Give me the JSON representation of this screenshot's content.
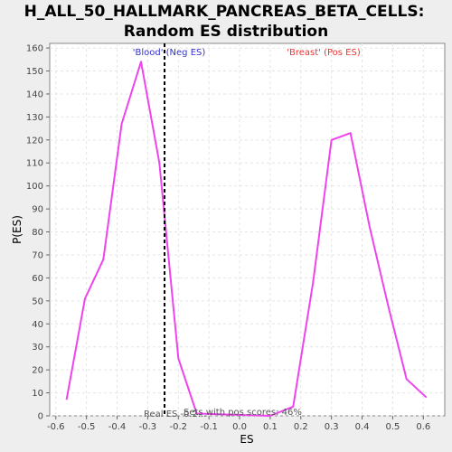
{
  "chart_data": {
    "type": "line",
    "title_lines": [
      "H_ALL_50_HALLMARK_PANCREAS_BETA_CELLS:",
      "Random ES distribution"
    ],
    "xlabel": "ES",
    "ylabel": "P(ES)",
    "xlim": [
      -0.62,
      0.67
    ],
    "ylim": [
      0,
      162
    ],
    "x_ticks": [
      -0.6,
      -0.5,
      -0.4,
      -0.3,
      -0.2,
      -0.1,
      0.0,
      0.1,
      0.2,
      0.3,
      0.4,
      0.5,
      0.6
    ],
    "x_tick_labels": [
      "-0.6",
      "-0.5",
      "-0.4",
      "-0.3",
      "-0.2",
      "-0.1",
      "0.0",
      "0.1",
      "0.2",
      "0.3",
      "0.4",
      "0.5",
      "0.6"
    ],
    "y_ticks": [
      0,
      10,
      20,
      30,
      40,
      50,
      60,
      70,
      80,
      90,
      100,
      110,
      120,
      130,
      140,
      150,
      160
    ],
    "y_tick_labels": [
      "0",
      "10",
      "20",
      "30",
      "40",
      "50",
      "60",
      "70",
      "80",
      "90",
      "100",
      "110",
      "120",
      "130",
      "140",
      "150",
      "160"
    ],
    "grid": true,
    "series": [
      {
        "color": "#ee44ee",
        "x": [
          -0.565,
          -0.505,
          -0.445,
          -0.385,
          -0.322,
          -0.262,
          -0.2,
          -0.14,
          0.1,
          0.175,
          0.24,
          0.3,
          0.362,
          0.425,
          0.485,
          0.545,
          0.61
        ],
        "y": [
          7,
          51,
          68,
          127,
          154,
          110,
          25,
          1,
          0,
          4,
          58,
          120,
          123,
          82,
          48,
          16,
          8
        ]
      }
    ],
    "real_es": -0.245,
    "real_es_line_color": "#000000",
    "annotations": {
      "neg_label": "'Blood' (Neg ES)",
      "neg_color": "#3333cc",
      "pos_label": "'Breast' (Pos ES)",
      "pos_color": "#ee3333",
      "real_es_label": "Real ES",
      "real_es_value": "-0.2...",
      "pos_scores_text": "Sets with pos scores: 46%",
      "bottom_color": "#555555"
    }
  }
}
